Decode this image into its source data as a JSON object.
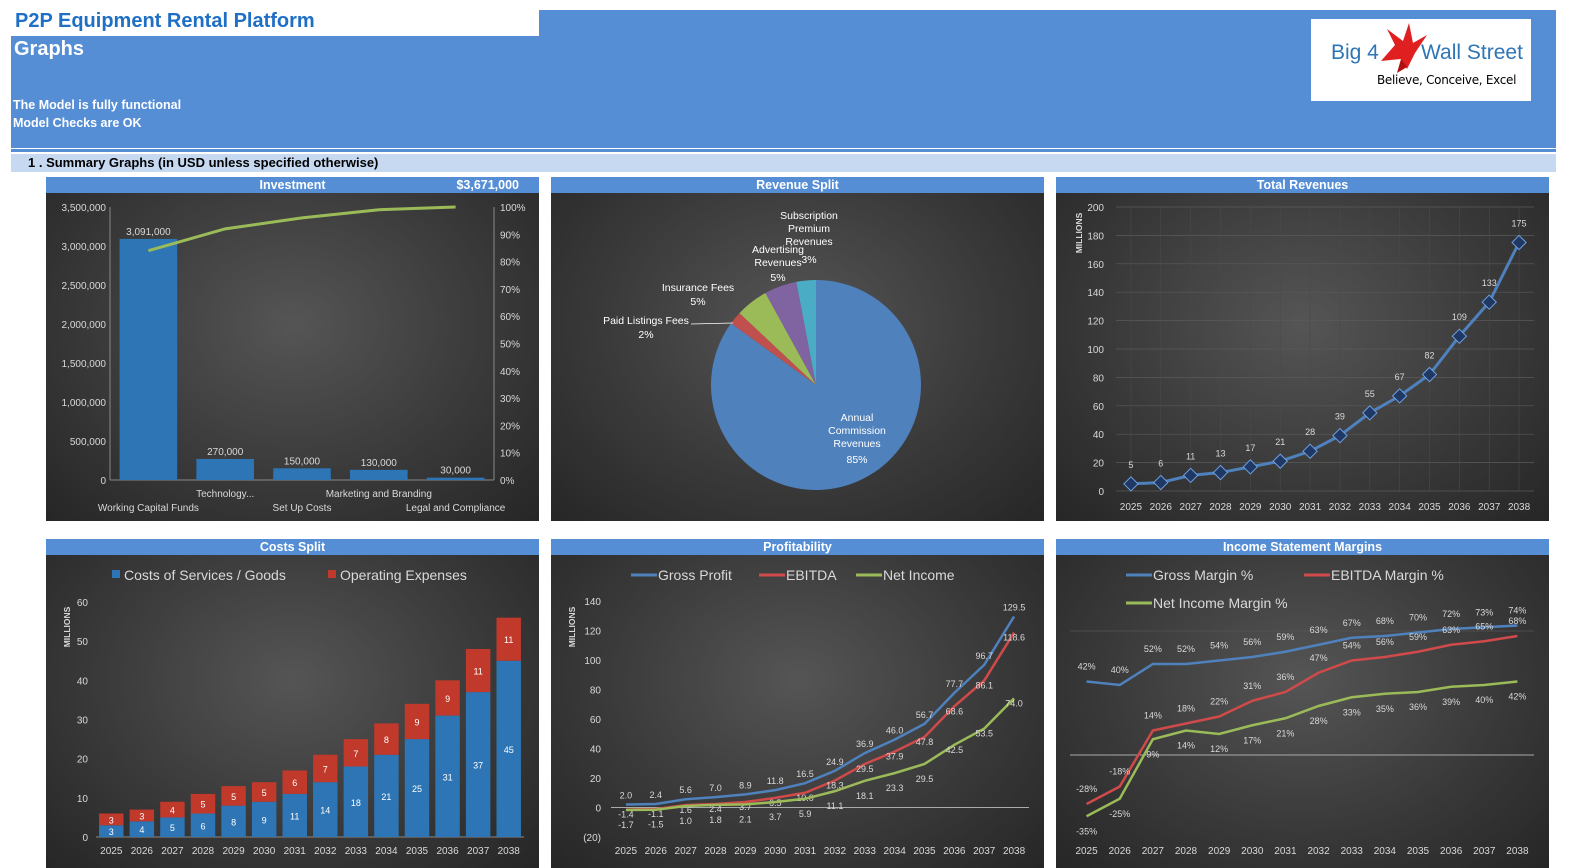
{
  "header": {
    "app_title": "P2P Equipment Rental Platform",
    "page_title": "Graphs",
    "status_lines": [
      "The Model is fully functional",
      "Model Checks are OK"
    ],
    "logo_left": "Big 4",
    "logo_right": "Wall Street",
    "logo_tagline": "Believe, Conceive, Excel",
    "section_title": "1 .  Summary Graphs (in USD unless specified otherwise)"
  },
  "colors": {
    "header_blue": "#558ED5",
    "section_band": "#C6D9F1",
    "bar_blue": "#2E75B6",
    "bar_red": "#C0392B",
    "line_blue": "#4F81BD",
    "line_red": "#D04A4A",
    "line_green": "#9BBB59"
  },
  "panels": {
    "investment": {
      "title": "Investment",
      "total": "$3,671,000"
    },
    "revenue_split": {
      "title": "Revenue Split"
    },
    "total_revenues": {
      "title": "Total Revenues"
    },
    "costs_split": {
      "title": "Costs Split"
    },
    "profitability": {
      "title": "Profitability"
    },
    "margins": {
      "title": "Income Statement Margins"
    }
  },
  "chart_data": [
    {
      "id": "investment",
      "type": "bar",
      "title": "Investment",
      "categories": [
        "Working Capital Funds",
        "Technology...",
        "Set Up Costs",
        "Marketing and Branding",
        "Legal and Compliance"
      ],
      "values": [
        3091000,
        270000,
        150000,
        130000,
        30000
      ],
      "value_labels": [
        "3,091,000",
        "270,000",
        "150,000",
        "130,000",
        "30,000"
      ],
      "cumulative_pct": [
        84,
        92,
        96,
        99,
        100
      ],
      "ylim": [
        0,
        3500000
      ],
      "yticks": [
        "3,500,000",
        "3,000,000",
        "2,500,000",
        "2,000,000",
        "1,500,000",
        "1,000,000",
        "500,000",
        "0"
      ],
      "y2ticks": [
        "100%",
        "90%",
        "80%",
        "70%",
        "60%",
        "50%",
        "40%",
        "30%",
        "20%",
        "10%",
        "0%"
      ]
    },
    {
      "id": "revenue_split",
      "type": "pie",
      "title": "Revenue Split",
      "slices": [
        {
          "label": "Annual Commission Revenues",
          "pct": 85,
          "text": "85%",
          "color": "#4F81BD"
        },
        {
          "label": "Paid Listings Fees",
          "pct": 2,
          "text": "2%",
          "color": "#C0504D"
        },
        {
          "label": "Insurance Fees",
          "pct": 5,
          "text": "5%",
          "color": "#9BBB59"
        },
        {
          "label": "Advertising Revenues",
          "pct": 5,
          "text": "5%",
          "color": "#8064A2"
        },
        {
          "label": "Subscription Premium Revenues",
          "pct": 3,
          "text": "3%",
          "color": "#4BACC6"
        }
      ]
    },
    {
      "id": "total_revenues",
      "type": "line",
      "title": "Total Revenues",
      "ylabel": "MILLIONS",
      "x": [
        "2025",
        "2026",
        "2027",
        "2028",
        "2029",
        "2030",
        "2031",
        "2032",
        "2033",
        "2034",
        "2035",
        "2036",
        "2037",
        "2038"
      ],
      "values": [
        5,
        6,
        11,
        13,
        17,
        21,
        28,
        39,
        55,
        67,
        82,
        109,
        133,
        175
      ],
      "ylim": [
        0,
        200
      ],
      "yticks": [
        0,
        20,
        40,
        60,
        80,
        100,
        120,
        140,
        160,
        180,
        200
      ]
    },
    {
      "id": "costs_split",
      "type": "bar",
      "stacked": true,
      "title": "Costs Split",
      "ylabel": "MILLIONS",
      "x": [
        "2025",
        "2026",
        "2027",
        "2028",
        "2029",
        "2030",
        "2031",
        "2032",
        "2033",
        "2034",
        "2035",
        "2036",
        "2037",
        "2038"
      ],
      "series": [
        {
          "name": "Costs of Services / Goods",
          "values": [
            3,
            4,
            5,
            6,
            8,
            9,
            11,
            14,
            18,
            21,
            25,
            31,
            37,
            45
          ]
        },
        {
          "name": "Operating Expenses",
          "values": [
            3,
            3,
            4,
            5,
            5,
            5,
            6,
            7,
            7,
            8,
            9,
            9,
            11,
            11
          ]
        }
      ],
      "ylim": [
        0,
        60
      ],
      "yticks": [
        0,
        10,
        20,
        30,
        40,
        50,
        60
      ]
    },
    {
      "id": "profitability",
      "type": "line",
      "title": "Profitability",
      "ylabel": "MILLIONS",
      "x": [
        "2025",
        "2026",
        "2027",
        "2028",
        "2029",
        "2030",
        "2031",
        "2032",
        "2033",
        "2034",
        "2035",
        "2036",
        "2037",
        "2038"
      ],
      "series": [
        {
          "name": "Gross Profit",
          "values": [
            2.0,
            2.4,
            5.6,
            7.0,
            8.9,
            11.8,
            16.5,
            24.9,
            36.9,
            46.0,
            56.7,
            77.7,
            96.7,
            129.5
          ]
        },
        {
          "name": "EBITDA",
          "values": [
            -1.4,
            -1.1,
            1.6,
            2.4,
            3.7,
            6.5,
            10.0,
            18.3,
            29.5,
            37.9,
            47.8,
            68.6,
            86.1,
            118.6
          ]
        },
        {
          "name": "Net Income",
          "values": [
            -1.7,
            -1.5,
            1.0,
            1.8,
            2.1,
            3.7,
            5.9,
            11.1,
            18.1,
            23.3,
            29.5,
            42.5,
            53.5,
            74.0
          ]
        }
      ],
      "labels": [
        [
          "2.0",
          "2.4",
          "5.6",
          "7.0",
          "8.9",
          "11.8",
          "16.5",
          "24.9",
          "36.9",
          "46.0",
          "56.7",
          "77.7",
          "96.7",
          "129.5"
        ],
        [
          "-1.4",
          "-1.1",
          "1.6",
          "2.4",
          "3.7",
          "6.5",
          "10.0",
          "18.3",
          "29.5",
          "37.9",
          "47.8",
          "68.6",
          "86.1",
          "118.6"
        ],
        [
          "-1.7",
          "-1.5",
          "1.0",
          "1.8",
          "2.1",
          "3.7",
          "5.9",
          "11.1",
          "18.1",
          "23.3",
          "29.5",
          "42.5",
          "53.5",
          "74.0"
        ]
      ],
      "ylim": [
        -20,
        140
      ],
      "yticks": [
        "(20)",
        "0",
        "20",
        "40",
        "60",
        "80",
        "100",
        "120",
        "140"
      ]
    },
    {
      "id": "margins",
      "type": "line",
      "title": "Income Statement Margins",
      "x": [
        "2025",
        "2026",
        "2027",
        "2028",
        "2029",
        "2030",
        "2031",
        "2032",
        "2033",
        "2034",
        "2035",
        "2036",
        "2037",
        "2038"
      ],
      "series": [
        {
          "name": "Gross Margin %",
          "values": [
            42,
            40,
            52,
            52,
            54,
            56,
            59,
            63,
            67,
            68,
            70,
            72,
            73,
            74
          ]
        },
        {
          "name": "EBITDA Margin %",
          "values": [
            -28,
            -18,
            14,
            18,
            22,
            31,
            36,
            47,
            54,
            56,
            59,
            63,
            65,
            68
          ]
        },
        {
          "name": "Net Income Margin %",
          "values": [
            -35,
            -25,
            9,
            14,
            12,
            17,
            21,
            28,
            33,
            35,
            36,
            39,
            40,
            42
          ]
        }
      ],
      "labels": [
        [
          "42%",
          "40%",
          "52%",
          "52%",
          "54%",
          "56%",
          "59%",
          "63%",
          "67%",
          "68%",
          "70%",
          "72%",
          "73%",
          "74%"
        ],
        [
          "-28%",
          "-18%",
          "14%",
          "18%",
          "22%",
          "31%",
          "36%",
          "47%",
          "54%",
          "56%",
          "59%",
          "63%",
          "65%",
          "68%"
        ],
        [
          "-35%",
          "-25%",
          "9%",
          "14%",
          "12%",
          "17%",
          "21%",
          "28%",
          "33%",
          "35%",
          "36%",
          "39%",
          "40%",
          "42%"
        ]
      ]
    }
  ]
}
